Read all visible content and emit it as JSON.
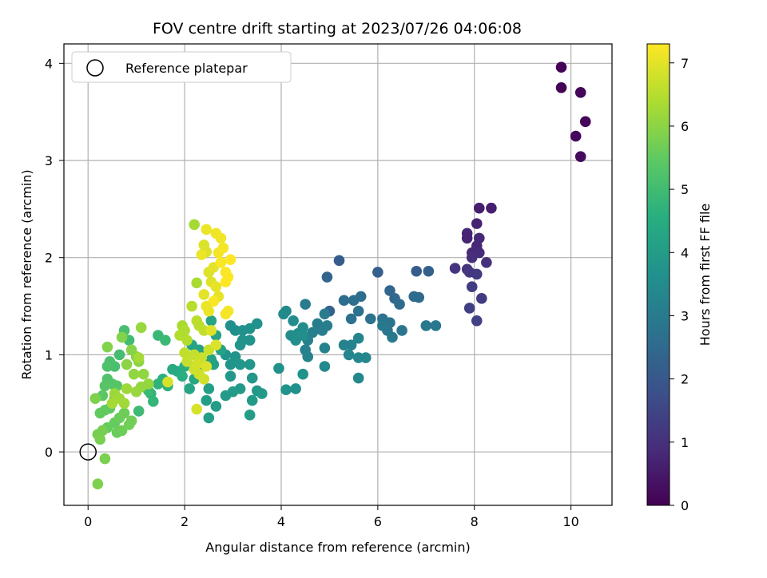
{
  "chart_data": {
    "type": "scatter",
    "title": "FOV centre drift starting at 2023/07/26 04:06:08",
    "xlabel": "Angular distance from reference (arcmin)",
    "ylabel": "Rotation from reference (arcmin)",
    "xlim": [
      -0.5,
      10.85
    ],
    "ylim": [
      -0.55,
      4.2
    ],
    "xticks": [
      0,
      2,
      4,
      6,
      8,
      10
    ],
    "yticks": [
      0,
      1,
      2,
      3,
      4
    ],
    "grid": true,
    "legend": {
      "position": "top-left",
      "entries": [
        "Reference platepar"
      ]
    },
    "reference": {
      "x": 0,
      "y": 0
    },
    "colorbar": {
      "label": "Hours from first FF file",
      "range": [
        0,
        7.3
      ],
      "ticks": [
        0,
        1,
        2,
        3,
        4,
        5,
        6,
        7
      ],
      "colormap": "viridis"
    },
    "points": [
      [
        9.8,
        3.96,
        0.05
      ],
      [
        9.8,
        3.75,
        0.08
      ],
      [
        10.2,
        3.7,
        0.1
      ],
      [
        10.3,
        3.4,
        0.12
      ],
      [
        10.1,
        3.25,
        0.15
      ],
      [
        10.2,
        3.04,
        0.18
      ],
      [
        8.1,
        2.51,
        0.6
      ],
      [
        8.35,
        2.51,
        0.62
      ],
      [
        8.05,
        2.35,
        0.7
      ],
      [
        7.85,
        2.25,
        0.75
      ],
      [
        7.85,
        2.2,
        0.72
      ],
      [
        8.1,
        2.2,
        0.8
      ],
      [
        8.05,
        2.12,
        0.82
      ],
      [
        7.95,
        2.05,
        0.85
      ],
      [
        8.1,
        2.05,
        0.9
      ],
      [
        7.95,
        2.0,
        0.95
      ],
      [
        8.25,
        1.95,
        1.0
      ],
      [
        7.6,
        1.89,
        1.1
      ],
      [
        7.85,
        1.88,
        1.05
      ],
      [
        7.9,
        1.85,
        1.15
      ],
      [
        8.05,
        1.83,
        1.2
      ],
      [
        7.95,
        1.7,
        1.3
      ],
      [
        8.15,
        1.58,
        1.25
      ],
      [
        7.9,
        1.48,
        1.35
      ],
      [
        8.05,
        1.35,
        1.4
      ],
      [
        5.2,
        1.97,
        2.1
      ],
      [
        6.0,
        1.85,
        2.2
      ],
      [
        6.8,
        1.86,
        2.15
      ],
      [
        7.05,
        1.86,
        2.25
      ],
      [
        5.0,
        1.45,
        2.3
      ],
      [
        4.95,
        1.8,
        2.35
      ],
      [
        6.25,
        1.66,
        2.4
      ],
      [
        6.35,
        1.58,
        2.45
      ],
      [
        6.85,
        1.59,
        2.5
      ],
      [
        6.45,
        1.52,
        2.5
      ],
      [
        6.75,
        1.6,
        2.55
      ],
      [
        5.65,
        1.6,
        2.6
      ],
      [
        5.3,
        1.56,
        2.6
      ],
      [
        5.5,
        1.56,
        2.65
      ],
      [
        5.6,
        1.45,
        2.7
      ],
      [
        5.45,
        1.37,
        2.7
      ],
      [
        5.85,
        1.37,
        2.75
      ],
      [
        6.1,
        1.37,
        2.75
      ],
      [
        6.25,
        1.33,
        2.8
      ],
      [
        6.15,
        1.3,
        2.8
      ],
      [
        6.2,
        1.25,
        2.85
      ],
      [
        6.5,
        1.25,
        2.85
      ],
      [
        7.0,
        1.3,
        2.9
      ],
      [
        7.2,
        1.3,
        2.9
      ],
      [
        6.3,
        1.18,
        2.95
      ],
      [
        6.1,
        1.3,
        2.95
      ],
      [
        4.5,
        1.52,
        3.0
      ],
      [
        4.9,
        1.42,
        3.0
      ],
      [
        4.75,
        1.32,
        3.05
      ],
      [
        4.95,
        1.3,
        3.05
      ],
      [
        4.85,
        1.25,
        3.1
      ],
      [
        4.65,
        1.23,
        3.1
      ],
      [
        4.55,
        1.15,
        3.15
      ],
      [
        4.5,
        1.05,
        3.15
      ],
      [
        4.55,
        0.98,
        3.2
      ],
      [
        4.9,
        1.07,
        3.2
      ],
      [
        5.3,
        1.1,
        3.25
      ],
      [
        5.45,
        1.1,
        3.25
      ],
      [
        5.6,
        1.17,
        3.3
      ],
      [
        5.4,
        1.0,
        3.3
      ],
      [
        5.6,
        0.97,
        3.35
      ],
      [
        5.75,
        0.97,
        3.35
      ],
      [
        5.6,
        0.76,
        3.4
      ],
      [
        4.9,
        0.88,
        3.4
      ],
      [
        4.05,
        1.42,
        3.45
      ],
      [
        4.1,
        1.45,
        3.45
      ],
      [
        4.25,
        1.35,
        3.5
      ],
      [
        4.35,
        1.22,
        3.5
      ],
      [
        4.45,
        1.28,
        3.55
      ],
      [
        4.2,
        1.2,
        3.55
      ],
      [
        4.3,
        1.15,
        3.6
      ],
      [
        4.45,
        1.2,
        3.6
      ],
      [
        3.95,
        0.86,
        3.65
      ],
      [
        4.3,
        0.65,
        3.65
      ],
      [
        4.45,
        0.8,
        3.7
      ],
      [
        4.1,
        0.64,
        3.7
      ],
      [
        2.95,
        1.3,
        3.6
      ],
      [
        3.05,
        1.25,
        3.62
      ],
      [
        3.2,
        1.25,
        3.65
      ],
      [
        3.35,
        1.27,
        3.66
      ],
      [
        3.5,
        1.32,
        3.68
      ],
      [
        3.2,
        1.15,
        3.7
      ],
      [
        3.35,
        1.15,
        3.72
      ],
      [
        3.15,
        1.1,
        3.74
      ],
      [
        2.85,
        1.0,
        3.75
      ],
      [
        3.05,
        0.98,
        3.76
      ],
      [
        2.95,
        0.9,
        3.78
      ],
      [
        3.15,
        0.9,
        3.8
      ],
      [
        3.35,
        0.9,
        3.82
      ],
      [
        3.4,
        0.76,
        3.84
      ],
      [
        2.95,
        0.78,
        3.86
      ],
      [
        3.5,
        0.63,
        3.88
      ],
      [
        3.6,
        0.6,
        3.9
      ],
      [
        3.4,
        0.53,
        3.92
      ],
      [
        3.15,
        0.65,
        3.94
      ],
      [
        3.0,
        0.62,
        3.96
      ],
      [
        2.85,
        0.58,
        3.98
      ],
      [
        2.65,
        0.47,
        4.0
      ],
      [
        3.35,
        0.38,
        4.02
      ],
      [
        2.45,
        0.53,
        4.04
      ],
      [
        2.5,
        0.35,
        4.06
      ],
      [
        2.5,
        0.65,
        4.08
      ],
      [
        2.25,
        0.78,
        4.1
      ],
      [
        2.35,
        0.88,
        4.12
      ],
      [
        2.6,
        0.9,
        4.14
      ],
      [
        2.55,
        0.95,
        4.16
      ],
      [
        2.75,
        1.05,
        4.18
      ],
      [
        2.3,
        1.05,
        4.2
      ],
      [
        2.15,
        1.1,
        4.22
      ],
      [
        2.65,
        1.2,
        4.24
      ],
      [
        2.55,
        1.35,
        4.26
      ],
      [
        2.1,
        0.65,
        4.28
      ],
      [
        2.2,
        0.75,
        4.3
      ],
      [
        1.75,
        0.85,
        4.4
      ],
      [
        1.85,
        0.83,
        4.45
      ],
      [
        2.0,
        0.88,
        4.5
      ],
      [
        1.95,
        0.78,
        4.55
      ],
      [
        1.55,
        0.75,
        4.6
      ],
      [
        1.65,
        0.68,
        4.65
      ],
      [
        1.45,
        0.7,
        4.7
      ],
      [
        1.3,
        0.6,
        4.75
      ],
      [
        1.35,
        0.52,
        4.8
      ],
      [
        1.45,
        1.2,
        4.85
      ],
      [
        1.6,
        1.15,
        4.9
      ],
      [
        1.25,
        0.63,
        4.9
      ],
      [
        1.05,
        0.42,
        4.95
      ],
      [
        0.85,
        1.15,
        5.0
      ],
      [
        0.65,
        1.0,
        5.05
      ],
      [
        0.75,
        1.25,
        5.1
      ],
      [
        0.55,
        0.88,
        5.1
      ],
      [
        0.45,
        0.93,
        5.15
      ],
      [
        0.4,
        0.88,
        5.2
      ],
      [
        0.4,
        0.75,
        5.25
      ],
      [
        0.5,
        0.7,
        5.3
      ],
      [
        0.6,
        0.68,
        5.35
      ],
      [
        0.35,
        0.68,
        5.35
      ],
      [
        0.3,
        0.58,
        5.4
      ],
      [
        0.55,
        0.55,
        5.4
      ],
      [
        0.45,
        0.45,
        5.45
      ],
      [
        0.35,
        0.43,
        5.5
      ],
      [
        0.25,
        0.4,
        5.5
      ],
      [
        0.4,
        0.25,
        5.55
      ],
      [
        0.55,
        0.3,
        5.55
      ],
      [
        0.65,
        0.35,
        5.6
      ],
      [
        0.6,
        0.2,
        5.6
      ],
      [
        0.7,
        0.22,
        5.65
      ],
      [
        0.75,
        0.4,
        5.65
      ],
      [
        0.85,
        0.28,
        5.7
      ],
      [
        0.9,
        0.32,
        5.7
      ],
      [
        0.2,
        0.18,
        5.75
      ],
      [
        0.3,
        0.22,
        5.75
      ],
      [
        0.25,
        0.13,
        5.8
      ],
      [
        0.35,
        -0.07,
        5.8
      ],
      [
        0.2,
        -0.33,
        5.85
      ],
      [
        0.15,
        0.55,
        5.85
      ],
      [
        0.4,
        1.08,
        5.9
      ],
      [
        0.7,
        1.18,
        5.9
      ],
      [
        0.9,
        1.05,
        5.95
      ],
      [
        1.0,
        0.98,
        5.95
      ],
      [
        0.8,
        0.9,
        6.0
      ],
      [
        1.05,
        0.93,
        6.0
      ],
      [
        1.15,
        0.8,
        6.05
      ],
      [
        0.95,
        0.8,
        6.05
      ],
      [
        1.1,
        0.67,
        6.1
      ],
      [
        1.25,
        0.7,
        6.1
      ],
      [
        1.0,
        0.62,
        6.15
      ],
      [
        1.1,
        1.28,
        6.15
      ],
      [
        0.8,
        0.65,
        6.2
      ],
      [
        0.55,
        0.6,
        6.2
      ],
      [
        0.65,
        0.55,
        6.25
      ],
      [
        0.75,
        0.5,
        6.25
      ],
      [
        0.5,
        0.5,
        6.3
      ],
      [
        1.05,
        0.97,
        6.3
      ],
      [
        1.95,
        1.3,
        6.35
      ],
      [
        2.0,
        1.25,
        6.4
      ],
      [
        1.9,
        1.2,
        6.45
      ],
      [
        2.05,
        1.15,
        6.45
      ],
      [
        2.15,
        1.5,
        6.5
      ],
      [
        2.25,
        1.35,
        6.55
      ],
      [
        2.3,
        1.3,
        6.55
      ],
      [
        2.4,
        1.25,
        6.6
      ],
      [
        2.0,
        1.02,
        6.6
      ],
      [
        2.2,
        1.0,
        6.65
      ],
      [
        2.05,
        0.93,
        6.65
      ],
      [
        2.35,
        0.97,
        6.7
      ],
      [
        2.5,
        1.05,
        6.7
      ],
      [
        2.2,
        0.85,
        6.75
      ],
      [
        2.3,
        0.8,
        6.75
      ],
      [
        2.4,
        0.75,
        6.8
      ],
      [
        2.25,
        0.9,
        6.8
      ],
      [
        1.65,
        0.72,
        6.85
      ],
      [
        2.2,
        2.34,
        6.3
      ],
      [
        2.25,
        1.74,
        6.35
      ],
      [
        2.25,
        0.44,
        6.85
      ],
      [
        2.4,
        2.13,
        6.9
      ],
      [
        2.45,
        2.06,
        6.9
      ],
      [
        2.5,
        1.85,
        6.95
      ],
      [
        2.55,
        1.75,
        6.95
      ],
      [
        2.4,
        1.62,
        7.0
      ],
      [
        2.6,
        1.9,
        7.0
      ],
      [
        2.65,
        1.7,
        7.05
      ],
      [
        2.7,
        1.6,
        7.05
      ],
      [
        2.5,
        1.45,
        7.1
      ],
      [
        2.45,
        2.29,
        7.1
      ],
      [
        2.65,
        2.25,
        7.15
      ],
      [
        2.75,
        2.2,
        7.15
      ],
      [
        2.8,
        2.1,
        7.2
      ],
      [
        2.7,
        2.05,
        7.2
      ],
      [
        2.75,
        1.95,
        7.25
      ],
      [
        2.85,
        1.85,
        7.25
      ],
      [
        2.9,
        1.8,
        7.3
      ],
      [
        2.95,
        1.98,
        7.3
      ],
      [
        2.85,
        1.75,
        7.3
      ],
      [
        2.6,
        1.55,
        7.25
      ],
      [
        2.9,
        1.45,
        7.2
      ],
      [
        2.85,
        1.42,
        7.2
      ],
      [
        2.45,
        1.5,
        7.1
      ],
      [
        2.35,
        2.03,
        7.1
      ],
      [
        2.55,
        1.25,
        6.95
      ],
      [
        2.65,
        1.1,
        6.9
      ],
      [
        2.45,
        0.88,
        6.9
      ]
    ]
  }
}
